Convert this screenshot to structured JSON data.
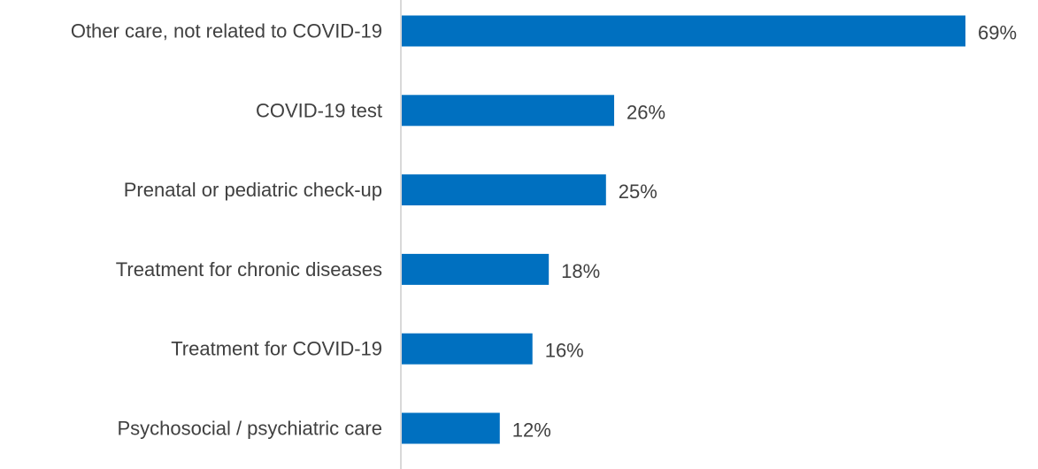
{
  "chart_data": {
    "type": "bar",
    "orientation": "horizontal",
    "categories": [
      "Other care, not related to COVID-19",
      "COVID-19 test",
      "Prenatal or pediatric check-up",
      "Treatment for chronic diseases",
      "Treatment for COVID-19",
      "Psychosocial / psychiatric care"
    ],
    "values": [
      69,
      26,
      25,
      18,
      16,
      12
    ],
    "data_labels": [
      "69%",
      "26%",
      "25%",
      "18%",
      "16%",
      "12%"
    ],
    "unit": "%",
    "title": "",
    "xlabel": "",
    "ylabel": "",
    "xlim": [
      0,
      69
    ],
    "grid": false,
    "legend": "none",
    "colors": {
      "bar": "#0070C0",
      "axis": "#D9D9D9",
      "text": "#404040"
    }
  }
}
